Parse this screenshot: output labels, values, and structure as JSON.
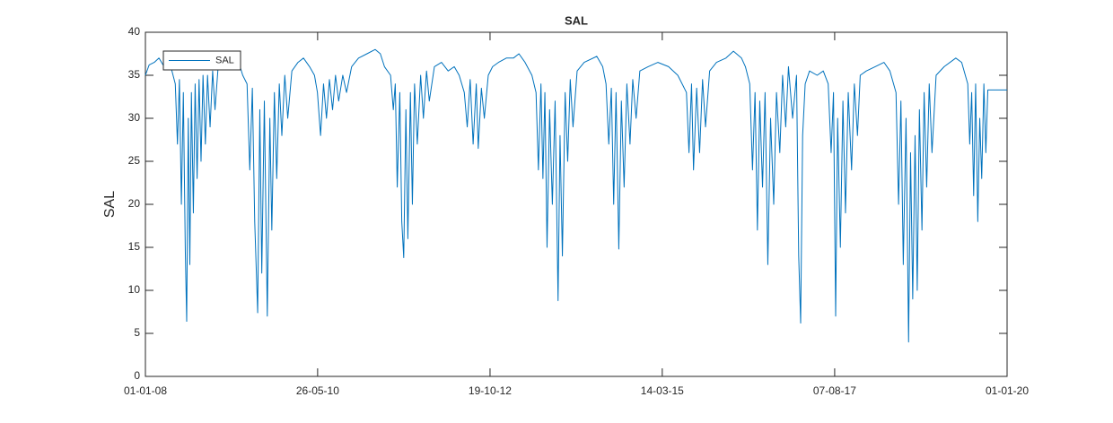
{
  "chart_data": {
    "type": "line",
    "title": "SAL",
    "ylabel": "SAL",
    "x": [
      "01-01-08",
      "20-01-08",
      "15-02-08",
      "10-03-08",
      "05-04-08",
      "25-04-08",
      "15-05-08",
      "01-06-08",
      "12-06-08",
      "22-06-08",
      "02-07-08",
      "12-07-08",
      "22-07-08",
      "29-07-08",
      "06-08-08",
      "14-08-08",
      "22-08-08",
      "01-09-08",
      "10-09-08",
      "20-09-08",
      "30-09-08",
      "10-10-08",
      "20-10-08",
      "01-11-08",
      "12-11-08",
      "25-11-08",
      "08-12-08",
      "20-12-08",
      "05-01-09",
      "01-02-09",
      "01-03-09",
      "01-04-09",
      "20-04-09",
      "10-05-09",
      "01-06-09",
      "15-06-09",
      "28-06-09",
      "10-07-09",
      "25-07-09",
      "05-08-09",
      "15-08-09",
      "28-08-09",
      "12-09-09",
      "25-09-09",
      "05-10-09",
      "18-10-09",
      "30-10-09",
      "12-11-09",
      "25-11-09",
      "10-12-09",
      "25-12-09",
      "15-01-10",
      "15-02-10",
      "15-03-10",
      "15-04-10",
      "10-05-10",
      "25-05-10",
      "10-06-10",
      "25-06-10",
      "10-07-10",
      "25-07-10",
      "10-08-10",
      "25-08-10",
      "10-09-10",
      "01-10-10",
      "20-10-10",
      "15-11-10",
      "20-12-10",
      "01-02-11",
      "15-03-11",
      "10-04-11",
      "01-05-11",
      "01-06-11",
      "15-06-11",
      "25-06-11",
      "05-07-11",
      "18-07-11",
      "28-07-11",
      "07-08-11",
      "18-08-11",
      "28-08-11",
      "10-09-11",
      "20-09-11",
      "01-10-11",
      "15-10-11",
      "01-11-11",
      "15-11-11",
      "01-12-11",
      "15-12-11",
      "10-01-12",
      "15-02-12",
      "20-03-12",
      "20-04-12",
      "15-05-12",
      "10-06-12",
      "25-06-12",
      "10-07-12",
      "25-07-12",
      "10-08-12",
      "20-08-12",
      "05-09-12",
      "20-09-12",
      "10-10-12",
      "01-11-12",
      "01-12-12",
      "10-01-13",
      "15-02-13",
      "15-03-13",
      "15-04-13",
      "20-05-13",
      "10-06-13",
      "22-06-13",
      "05-07-13",
      "15-07-13",
      "25-07-13",
      "05-08-13",
      "18-08-13",
      "01-09-13",
      "15-09-13",
      "30-09-13",
      "10-10-13",
      "22-10-13",
      "05-11-13",
      "18-11-13",
      "01-12-13",
      "15-12-13",
      "05-01-14",
      "10-02-14",
      "15-04-14",
      "15-05-14",
      "01-06-14",
      "15-06-14",
      "28-06-14",
      "10-07-14",
      "22-07-14",
      "05-08-14",
      "18-08-14",
      "01-09-14",
      "15-09-14",
      "01-10-14",
      "15-10-14",
      "01-11-14",
      "20-11-14",
      "01-01-15",
      "20-02-15",
      "15-04-15",
      "01-06-15",
      "15-07-15",
      "28-07-15",
      "10-08-15",
      "20-08-15",
      "05-09-15",
      "20-09-15",
      "05-10-15",
      "20-10-15",
      "10-11-15",
      "15-12-15",
      "01-02-16",
      "10-03-16",
      "20-04-16",
      "10-05-16",
      "01-06-16",
      "15-06-16",
      "28-06-16",
      "10-07-16",
      "22-07-16",
      "05-08-16",
      "18-08-16",
      "01-09-16",
      "15-09-16",
      "01-10-16",
      "15-10-16",
      "01-11-16",
      "15-11-16",
      "01-12-16",
      "15-12-16",
      "05-01-17",
      "25-01-17",
      "05-02-17",
      "15-02-17",
      "25-02-17",
      "10-03-17",
      "01-04-17",
      "10-05-17",
      "10-06-17",
      "05-07-17",
      "20-07-17",
      "01-08-17",
      "12-08-17",
      "22-08-17",
      "05-09-17",
      "18-09-17",
      "01-10-17",
      "15-10-17",
      "01-11-17",
      "15-11-17",
      "01-12-17",
      "15-12-17",
      "15-01-18",
      "01-03-18",
      "15-04-18",
      "15-05-18",
      "15-06-18",
      "28-06-18",
      "10-07-18",
      "22-07-18",
      "05-08-18",
      "18-08-18",
      "28-08-18",
      "08-09-18",
      "20-09-18",
      "01-10-18",
      "12-10-18",
      "25-10-18",
      "05-11-18",
      "18-11-18",
      "01-12-18",
      "15-12-18",
      "05-01-19",
      "15-02-19",
      "15-04-19",
      "15-05-19",
      "15-06-19",
      "25-06-19",
      "05-07-19",
      "15-07-19",
      "25-07-19",
      "05-08-19",
      "15-08-19",
      "25-08-19",
      "05-09-19",
      "15-09-19",
      "25-09-19",
      "01-01-20"
    ],
    "series": [
      {
        "name": "SAL",
        "color": "#0072bd",
        "values": [
          35.0,
          36.2,
          36.5,
          37.0,
          36.0,
          36.8,
          35.5,
          34.0,
          27.0,
          34.5,
          20.0,
          33.0,
          14.5,
          6.4,
          30.0,
          13.0,
          33.0,
          19.0,
          34.0,
          23.0,
          34.5,
          25.0,
          35.0,
          27.0,
          35.0,
          29.0,
          35.5,
          31.0,
          36.0,
          36.5,
          37.0,
          37.5,
          36.5,
          35.0,
          34.0,
          24.0,
          33.5,
          18.0,
          7.4,
          31.0,
          12.0,
          32.0,
          7.0,
          30.0,
          17.0,
          33.0,
          23.0,
          34.0,
          28.0,
          35.0,
          30.0,
          35.5,
          36.5,
          37.0,
          36.0,
          35.0,
          33.0,
          28.0,
          34.0,
          30.0,
          34.5,
          31.0,
          35.0,
          32.0,
          35.0,
          33.0,
          36.0,
          37.0,
          37.5,
          38.0,
          37.5,
          36.0,
          35.0,
          31.0,
          34.0,
          22.0,
          33.0,
          18.0,
          13.8,
          31.0,
          16.0,
          33.0,
          20.0,
          34.0,
          27.0,
          35.0,
          30.0,
          35.5,
          32.0,
          36.0,
          36.5,
          35.5,
          36.0,
          35.0,
          33.0,
          29.0,
          34.5,
          27.0,
          34.0,
          26.5,
          33.5,
          30.0,
          35.0,
          36.0,
          36.5,
          37.0,
          37.0,
          37.5,
          36.5,
          35.0,
          33.0,
          24.0,
          34.0,
          23.0,
          33.0,
          15.0,
          31.0,
          20.0,
          32.0,
          8.8,
          28.0,
          14.0,
          33.0,
          25.0,
          34.5,
          29.0,
          35.5,
          36.5,
          37.2,
          36.0,
          34.0,
          27.0,
          33.5,
          20.0,
          33.0,
          14.8,
          32.0,
          22.0,
          34.0,
          27.0,
          34.5,
          30.0,
          35.5,
          36.0,
          36.5,
          36.0,
          35.0,
          33.0,
          26.0,
          34.0,
          24.0,
          33.5,
          26.0,
          34.5,
          29.0,
          35.5,
          36.5,
          37.0,
          37.8,
          37.0,
          36.0,
          34.0,
          24.0,
          33.0,
          17.0,
          32.0,
          22.0,
          33.0,
          13.0,
          30.0,
          20.0,
          33.0,
          26.0,
          35.0,
          29.0,
          36.0,
          30.0,
          35.0,
          14.0,
          6.2,
          28.0,
          34.0,
          35.5,
          35.0,
          35.5,
          34.0,
          26.0,
          33.0,
          7.0,
          30.0,
          15.0,
          32.0,
          19.0,
          33.0,
          24.0,
          34.0,
          28.0,
          35.0,
          35.5,
          36.0,
          36.5,
          35.5,
          33.0,
          20.0,
          32.0,
          13.0,
          30.0,
          4.0,
          26.0,
          9.0,
          28.0,
          10.0,
          31.0,
          17.0,
          33.0,
          22.0,
          34.0,
          26.0,
          35.0,
          36.0,
          37.0,
          36.5,
          34.0,
          27.0,
          33.0,
          21.0,
          34.0,
          18.0,
          30.0,
          23.0,
          34.0,
          26.0,
          33.3,
          33.3
        ]
      }
    ],
    "xlim": [
      "01-01-08",
      "01-01-20"
    ],
    "xticks": [
      "01-01-08",
      "26-05-10",
      "19-10-12",
      "14-03-15",
      "07-08-17",
      "01-01-20"
    ],
    "ylim": [
      0,
      40
    ],
    "yticks": [
      0,
      5,
      10,
      15,
      20,
      25,
      30,
      35,
      40
    ],
    "legend": "upper left"
  }
}
